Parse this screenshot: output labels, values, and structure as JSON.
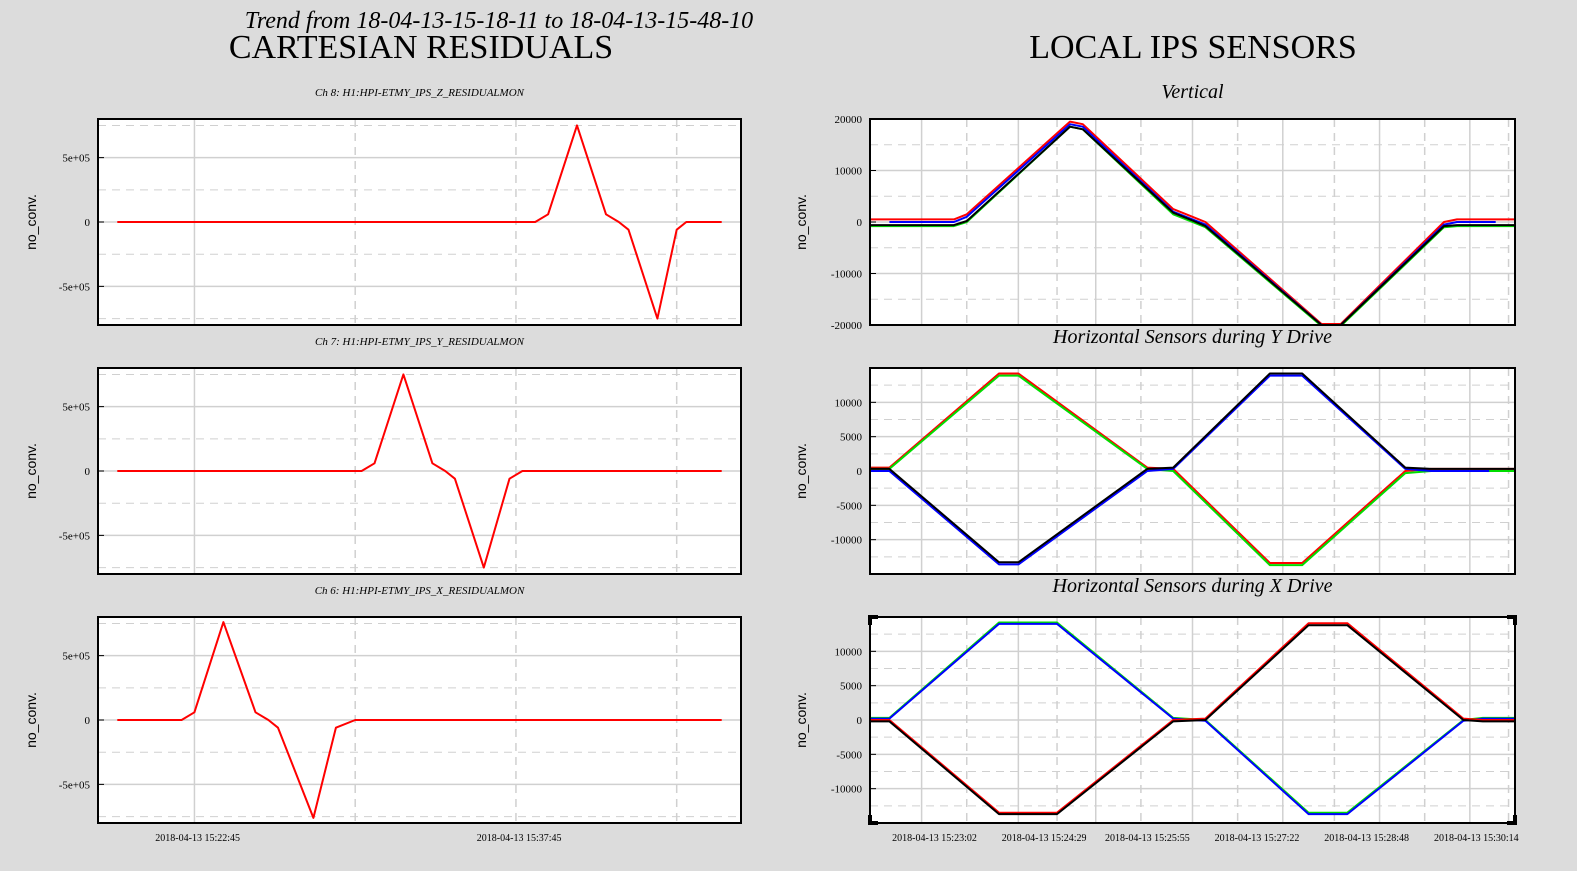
{
  "header": {
    "trend_title": "Trend from 18-04-13-15-18-11 to 18-04-13-15-48-10",
    "left_title": "CARTESIAN RESIDUALS",
    "right_title": "LOCAL IPS SENSORS"
  },
  "colors": {
    "red": "#ff0000",
    "green": "#00dd00",
    "blue": "#0000ff",
    "black": "#000000",
    "grid": "#d0d0d0",
    "background": "#dcdcdc"
  },
  "chart_data": [
    {
      "id": "z_residual",
      "type": "line",
      "title": "Ch 8: H1:HPI-ETMY_IPS_Z_RESIDUALMON",
      "ylabel": "no_conv.",
      "xlim": [
        0,
        1
      ],
      "ylim": [
        -800000,
        800000
      ],
      "yticks": [
        500000,
        0,
        -500000
      ],
      "ytick_labels": [
        "5e+05",
        "0",
        "-5e+05"
      ],
      "xticks": [],
      "series": [
        {
          "color": "red",
          "x": [
            0.03,
            0.68,
            0.7,
            0.745,
            0.79,
            0.81,
            0.825,
            0.87,
            0.9,
            0.915,
            0.95,
            0.97
          ],
          "y": [
            0,
            0,
            60000,
            750000,
            60000,
            0,
            -60000,
            -750000,
            -60000,
            0,
            0,
            0
          ]
        }
      ]
    },
    {
      "id": "y_residual",
      "type": "line",
      "title": "Ch 7: H1:HPI-ETMY_IPS_Y_RESIDUALMON",
      "ylabel": "no_conv.",
      "xlim": [
        0,
        1
      ],
      "ylim": [
        -800000,
        800000
      ],
      "yticks": [
        500000,
        0,
        -500000
      ],
      "ytick_labels": [
        "5e+05",
        "0",
        "-5e+05"
      ],
      "xticks": [],
      "series": [
        {
          "color": "red",
          "x": [
            0.03,
            0.41,
            0.43,
            0.475,
            0.52,
            0.54,
            0.555,
            0.6,
            0.64,
            0.66,
            0.97
          ],
          "y": [
            0,
            0,
            60000,
            750000,
            60000,
            0,
            -60000,
            -750000,
            -60000,
            0,
            0
          ]
        }
      ]
    },
    {
      "id": "x_residual",
      "type": "line",
      "title": "Ch 6: H1:HPI-ETMY_IPS_X_RESIDUALMON",
      "ylabel": "no_conv.",
      "xlim": [
        0,
        1
      ],
      "ylim": [
        -800000,
        800000
      ],
      "yticks": [
        500000,
        0,
        -500000
      ],
      "ytick_labels": [
        "5e+05",
        "0",
        "-5e+05"
      ],
      "xticks": [
        0.155,
        0.655
      ],
      "xtick_labels": [
        "2018-04-13 15:22:45",
        "2018-04-13 15:37:45"
      ],
      "series": [
        {
          "color": "red",
          "x": [
            0.03,
            0.13,
            0.15,
            0.195,
            0.245,
            0.265,
            0.28,
            0.335,
            0.37,
            0.4,
            0.97
          ],
          "y": [
            0,
            0,
            60000,
            760000,
            60000,
            0,
            -60000,
            -760000,
            -60000,
            0,
            0
          ]
        }
      ]
    },
    {
      "id": "vertical",
      "type": "line",
      "title": "Vertical",
      "ylabel": "no_conv.",
      "xlim": [
        0,
        1
      ],
      "ylim": [
        -20000,
        20000
      ],
      "yticks": [
        20000,
        10000,
        0,
        -10000,
        -20000
      ],
      "ytick_labels": [
        "20000",
        "10000",
        "0",
        "-10000",
        "-20000"
      ],
      "xticks": [],
      "series": [
        {
          "color": "red",
          "x": [
            0.0,
            0.13,
            0.15,
            0.31,
            0.33,
            0.47,
            0.5,
            0.52,
            0.7,
            0.73,
            0.89,
            0.91,
            1.0
          ],
          "y": [
            500,
            500,
            1500,
            19500,
            19000,
            2500,
            1000,
            0,
            -19800,
            -19800,
            0,
            500,
            500
          ]
        },
        {
          "color": "blue",
          "x": [
            0.03,
            0.13,
            0.15,
            0.31,
            0.33,
            0.47,
            0.5,
            0.52,
            0.7,
            0.73,
            0.89,
            0.91,
            0.97
          ],
          "y": [
            0,
            0,
            1000,
            19000,
            18500,
            2000,
            500,
            -500,
            -20000,
            -20000,
            -500,
            0,
            0
          ]
        },
        {
          "color": "green",
          "x": [
            0.0,
            0.13,
            0.15,
            0.31,
            0.33,
            0.47,
            0.5,
            0.52,
            0.7,
            0.73,
            0.89,
            0.91,
            1.0
          ],
          "y": [
            -800,
            -800,
            0,
            18500,
            18000,
            1500,
            0,
            -1000,
            -20200,
            -20200,
            -1000,
            -800,
            -800
          ]
        },
        {
          "color": "black",
          "x": [
            0.0,
            0.13,
            0.15,
            0.31,
            0.33,
            0.47,
            0.5,
            0.52,
            0.7,
            0.73,
            0.89,
            0.91,
            1.0
          ],
          "y": [
            -600,
            -600,
            200,
            18500,
            18000,
            1800,
            300,
            -800,
            -20000,
            -20000,
            -800,
            -600,
            -600
          ]
        }
      ]
    },
    {
      "id": "horizontal_y_drive",
      "type": "line",
      "title": "Horizontal Sensors during Y Drive",
      "ylabel": "no_conv.",
      "xlim": [
        0,
        1
      ],
      "ylim": [
        -15000,
        15000
      ],
      "yticks": [
        10000,
        5000,
        0,
        -5000,
        -10000
      ],
      "ytick_labels": [
        "10000",
        "5000",
        "0",
        "-5000",
        "-10000"
      ],
      "xticks": [],
      "series": [
        {
          "color": "red",
          "x": [
            0.0,
            0.03,
            0.2,
            0.23,
            0.43,
            0.47,
            0.62,
            0.67,
            0.83,
            0.87,
            1.0
          ],
          "y": [
            500,
            500,
            14200,
            14200,
            500,
            300,
            -13400,
            -13400,
            0,
            300,
            300
          ]
        },
        {
          "color": "green",
          "x": [
            0.0,
            0.03,
            0.2,
            0.23,
            0.43,
            0.47,
            0.62,
            0.67,
            0.83,
            0.87,
            1.0
          ],
          "y": [
            300,
            300,
            13900,
            13900,
            300,
            0,
            -13700,
            -13700,
            -300,
            0,
            0
          ]
        },
        {
          "color": "blue",
          "x": [
            0.0,
            0.03,
            0.2,
            0.23,
            0.43,
            0.47,
            0.62,
            0.67,
            0.83,
            0.87,
            0.96
          ],
          "y": [
            0,
            0,
            -13600,
            -13600,
            0,
            300,
            13900,
            13900,
            300,
            0,
            0
          ]
        },
        {
          "color": "black",
          "x": [
            0.0,
            0.03,
            0.2,
            0.23,
            0.43,
            0.47,
            0.62,
            0.67,
            0.83,
            0.87,
            1.0
          ],
          "y": [
            300,
            300,
            -13300,
            -13300,
            300,
            500,
            14200,
            14200,
            500,
            300,
            300
          ]
        }
      ]
    },
    {
      "id": "horizontal_x_drive",
      "type": "line",
      "title": "Horizontal Sensors during X Drive",
      "ylabel": "no_conv.",
      "xlim": [
        0,
        1
      ],
      "ylim": [
        -15000,
        15000
      ],
      "yticks": [
        10000,
        5000,
        0,
        -5000,
        -10000
      ],
      "ytick_labels": [
        "10000",
        "5000",
        "0",
        "-5000",
        "-10000"
      ],
      "xticks": [
        0.1,
        0.27,
        0.43,
        0.6,
        0.77,
        0.94
      ],
      "xtick_labels": [
        "2018-04-13 15:23:02",
        "2018-04-13 15:24:29",
        "2018-04-13 15:25:55",
        "2018-04-13 15:27:22",
        "2018-04-13 15:28:48",
        "2018-04-13 15:30:14"
      ],
      "series": [
        {
          "color": "green",
          "x": [
            0.0,
            0.03,
            0.2,
            0.29,
            0.47,
            0.52,
            0.68,
            0.74,
            0.92,
            0.95,
            1.0
          ],
          "y": [
            300,
            300,
            14200,
            14200,
            300,
            0,
            -13500,
            -13500,
            0,
            300,
            300
          ]
        },
        {
          "color": "blue",
          "x": [
            0.0,
            0.03,
            0.2,
            0.29,
            0.47,
            0.52,
            0.68,
            0.74,
            0.92,
            0.95,
            1.0
          ],
          "y": [
            200,
            200,
            14000,
            14000,
            200,
            -100,
            -13700,
            -13700,
            -100,
            200,
            200
          ]
        },
        {
          "color": "red",
          "x": [
            0.0,
            0.03,
            0.2,
            0.29,
            0.47,
            0.52,
            0.68,
            0.74,
            0.92,
            0.95,
            1.0
          ],
          "y": [
            0,
            0,
            -13500,
            -13500,
            0,
            200,
            14100,
            14100,
            200,
            0,
            0
          ]
        },
        {
          "color": "black",
          "x": [
            0.0,
            0.03,
            0.2,
            0.29,
            0.47,
            0.52,
            0.68,
            0.74,
            0.92,
            0.95,
            1.0
          ],
          "y": [
            -200,
            -200,
            -13700,
            -13700,
            -200,
            0,
            13800,
            13800,
            0,
            -200,
            -200
          ]
        }
      ]
    }
  ]
}
